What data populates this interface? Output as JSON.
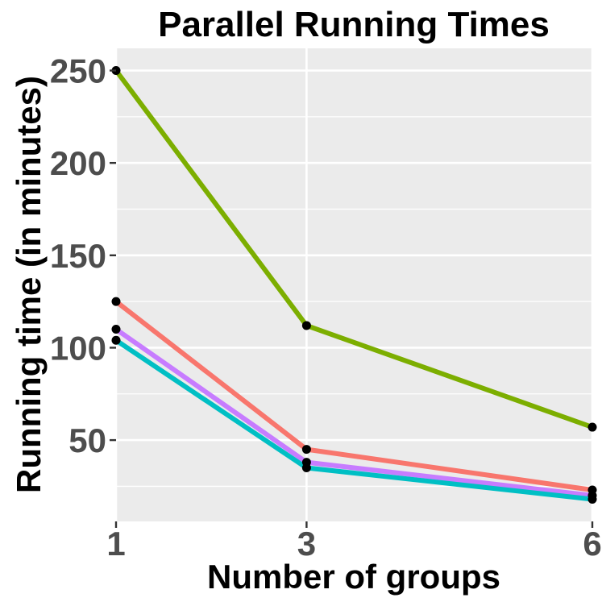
{
  "chart_data": {
    "type": "line",
    "title": "Parallel Running Times",
    "xlabel": "Number of groups",
    "ylabel": "Running time (in minutes)",
    "x": [
      1,
      3,
      6
    ],
    "x_tick_labels": [
      "1",
      "3",
      "6"
    ],
    "xlim": [
      1,
      6
    ],
    "y_ticks": [
      50,
      100,
      150,
      200,
      250
    ],
    "y_tick_labels": [
      "50",
      "100",
      "150",
      "200",
      "250"
    ],
    "ylim": [
      6,
      262
    ],
    "grid": true,
    "legend": "none",
    "series": [
      {
        "color": "#7CAE00",
        "values": [
          250,
          112,
          57
        ]
      },
      {
        "color": "#F8766D",
        "values": [
          125,
          45,
          23
        ]
      },
      {
        "color": "#C77CFF",
        "values": [
          110,
          38,
          20
        ]
      },
      {
        "color": "#00BFC4",
        "values": [
          104,
          35,
          18
        ]
      }
    ]
  }
}
